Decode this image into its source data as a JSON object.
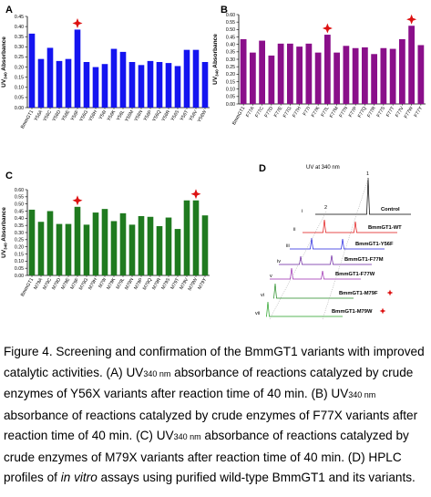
{
  "panels": {
    "A": {
      "label": "A"
    },
    "B": {
      "label": "B"
    },
    "C": {
      "label": "C"
    },
    "D": {
      "label": "D"
    }
  },
  "chart_data": [
    {
      "type": "bar",
      "panel": "A",
      "ylabel": "UV340 Absorbance",
      "ylim": [
        0,
        0.45
      ],
      "yticks": [
        "0.00",
        "0.05",
        "0.10",
        "0.15",
        "0.20",
        "0.25",
        "0.30",
        "0.35",
        "0.40",
        "0.45"
      ],
      "color": "#1414f0",
      "categories": [
        "BmmGT1",
        "Y56A",
        "Y56C",
        "Y56D",
        "Y56E",
        "Y56F",
        "Y56G",
        "Y56H",
        "Y56I",
        "Y56K",
        "Y56L",
        "Y56M",
        "Y56N",
        "Y56P",
        "Y56Q",
        "Y56R",
        "Y56S",
        "Y56T",
        "Y56V",
        "Y56W"
      ],
      "values": [
        0.365,
        0.24,
        0.295,
        0.23,
        0.24,
        0.385,
        0.225,
        0.2,
        0.215,
        0.29,
        0.275,
        0.225,
        0.21,
        0.23,
        0.225,
        0.22,
        0.205,
        0.285,
        0.285,
        0.225
      ],
      "marked": [
        "Y56F"
      ]
    },
    {
      "type": "bar",
      "panel": "B",
      "ylabel": "UV340 Absorbance",
      "ylim": [
        0,
        0.6
      ],
      "yticks": [
        "0.00",
        "0.05",
        "0.10",
        "0.15",
        "0.20",
        "0.25",
        "0.30",
        "0.35",
        "0.40",
        "0.45",
        "0.50",
        "0.55",
        "0.60"
      ],
      "color": "#8a0f8a",
      "categories": [
        "BmmGT1",
        "F77A",
        "F77C",
        "F77D",
        "F77E",
        "F77G",
        "F77H",
        "F77I",
        "F77K",
        "F77L",
        "F77M",
        "F77N",
        "F77P",
        "F77Q",
        "F77R",
        "F77S",
        "F77T",
        "F77V",
        "F77W",
        "F77Y"
      ],
      "values": [
        0.435,
        0.345,
        0.425,
        0.325,
        0.405,
        0.405,
        0.385,
        0.405,
        0.345,
        0.465,
        0.345,
        0.39,
        0.375,
        0.38,
        0.335,
        0.375,
        0.37,
        0.435,
        0.525,
        0.395
      ],
      "marked": [
        "F77L",
        "F77W"
      ]
    },
    {
      "type": "bar",
      "panel": "C",
      "ylabel": "UV340 Absorbance",
      "ylim": [
        0,
        0.6
      ],
      "yticks": [
        "0.00",
        "0.05",
        "0.10",
        "0.15",
        "0.20",
        "0.25",
        "0.30",
        "0.35",
        "0.40",
        "0.45",
        "0.50",
        "0.55",
        "0.60"
      ],
      "color": "#1f7a1f",
      "categories": [
        "BmmGT1",
        "M79A",
        "M79C",
        "M79D",
        "M79E",
        "M79F",
        "M79G",
        "M79H",
        "M79I",
        "M79K",
        "M79L",
        "M79N",
        "M79P",
        "M79Q",
        "M79R",
        "M79S",
        "M79T",
        "M79V",
        "M79W",
        "M79Y"
      ],
      "values": [
        0.46,
        0.375,
        0.45,
        0.36,
        0.36,
        0.48,
        0.355,
        0.44,
        0.465,
        0.38,
        0.435,
        0.355,
        0.415,
        0.41,
        0.345,
        0.405,
        0.325,
        0.525,
        0.525,
        0.42
      ],
      "marked": [
        "M79F",
        "M79W"
      ]
    }
  ],
  "hplc": {
    "title": "UV at 340 nm",
    "peak_labels": [
      "1",
      "2"
    ],
    "traces": [
      {
        "roman": "i",
        "name": "Control",
        "color": "#000000"
      },
      {
        "roman": "ii",
        "name": "BmmGT1-WT",
        "color": "#e01010"
      },
      {
        "roman": "iii",
        "name": "BmmGT1-Y56F",
        "color": "#2020e0"
      },
      {
        "roman": "iv",
        "name": "BmmGT1-F77M",
        "color": "#6a1fa0"
      },
      {
        "roman": "v",
        "name": "BmmGT1-F77W",
        "color": "#9a2ab0"
      },
      {
        "roman": "vi",
        "name": "BmmGT1-M79F",
        "color": "#228b22",
        "star": true
      },
      {
        "roman": "vii",
        "name": "BmmGT1-M79W",
        "color": "#22a022",
        "star": true
      }
    ]
  },
  "caption": {
    "l1": "Figure 4. Screening and confirmation of the BmmGT1 variants with improved",
    "l2": "catalytic activities. (A) UV",
    "l2_sub": "340 nm",
    "l2_rest": " absorbance of reactions catalyzed by crude",
    "l3": "enzymes of Y56X variants after reaction time of 40 min. (B) UV",
    "l3_sub": "340 nm",
    "l4": "absorbance of reactions catalyzed by crude enzymes of F77X variants after",
    "l5": "reaction time of 40 min. (C) UV",
    "l5_sub": "340 nm",
    "l5_rest": " absorbance of reactions catalyzed by",
    "l6": "crude enzymes of M79X variants after reaction time of 40 min. (D) HPLC",
    "l7a": "profiles of ",
    "l7_em": "in vitro",
    "l7b": " assays using purified wild-type BmmGT1 and its variants."
  },
  "star_color": "#dd1111"
}
